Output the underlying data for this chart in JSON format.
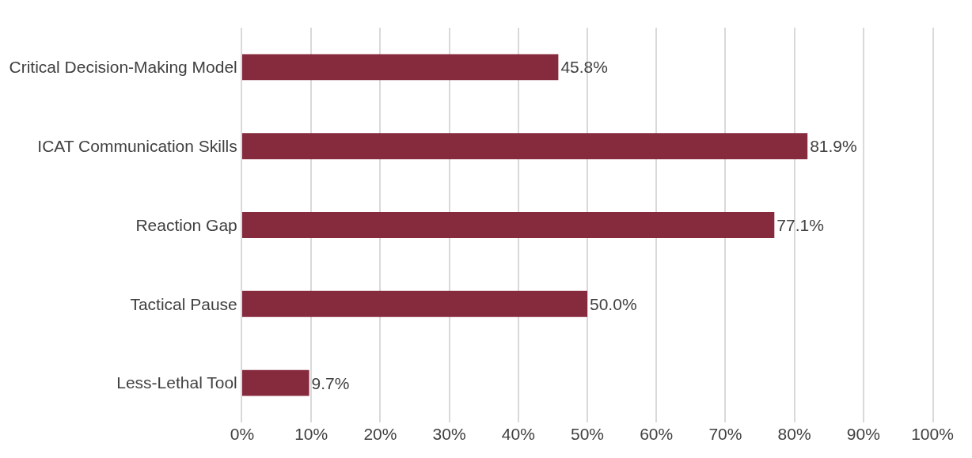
{
  "chart_data": {
    "type": "bar",
    "orientation": "horizontal",
    "categories": [
      "Critical Decision-Making Model",
      "ICAT Communication Skills",
      "Reaction Gap",
      "Tactical Pause",
      "Less-Lethal Tool"
    ],
    "values": [
      45.8,
      81.9,
      77.1,
      50.0,
      9.7
    ],
    "value_labels": [
      "45.8%",
      "81.9%",
      "77.1%",
      "50.0%",
      "9.7%"
    ],
    "color": "#862a3e",
    "xlim": [
      0,
      100
    ],
    "xticks": [
      {
        "value": 0,
        "label": "0%"
      },
      {
        "value": 10,
        "label": "10%"
      },
      {
        "value": 20,
        "label": "20%"
      },
      {
        "value": 30,
        "label": "30%"
      },
      {
        "value": 40,
        "label": "40%"
      },
      {
        "value": 50,
        "label": "50%"
      },
      {
        "value": 60,
        "label": "60%"
      },
      {
        "value": 70,
        "label": "70%"
      },
      {
        "value": 80,
        "label": "80%"
      },
      {
        "value": 90,
        "label": "90%"
      },
      {
        "value": 100,
        "label": "100%"
      }
    ],
    "grid": "x"
  }
}
